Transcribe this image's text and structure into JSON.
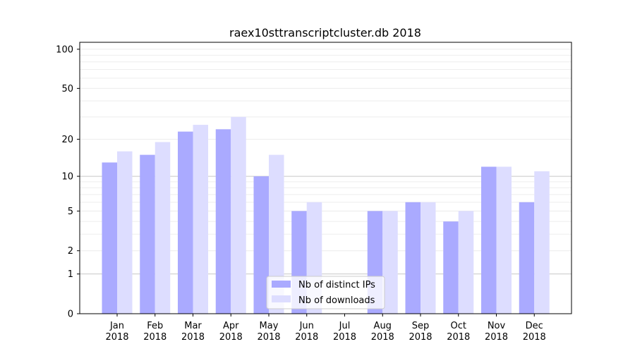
{
  "chart_data": {
    "type": "bar",
    "title": "raex10sttranscriptcluster.db 2018",
    "xlabel": "",
    "ylabel": "",
    "yscale": "log10(1+y)",
    "ylim": [
      0,
      113
    ],
    "yticks": [
      0,
      1,
      2,
      5,
      10,
      20,
      50,
      100
    ],
    "grid": true,
    "legend_position": "lower-center",
    "categories": [
      "Jan\n2018",
      "Feb\n2018",
      "Mar\n2018",
      "Apr\n2018",
      "May\n2018",
      "Jun\n2018",
      "Jul\n2018",
      "Aug\n2018",
      "Sep\n2018",
      "Oct\n2018",
      "Nov\n2018",
      "Dec\n2018"
    ],
    "series": [
      {
        "name": "Nb of distinct IPs",
        "color": "#aaaaff",
        "values": [
          13,
          15,
          23,
          24,
          10,
          5,
          0,
          5,
          6,
          4,
          12,
          6
        ]
      },
      {
        "name": "Nb of downloads",
        "color": "#ddddff",
        "values": [
          16,
          19,
          26,
          30,
          15,
          6,
          0,
          5,
          6,
          5,
          12,
          11
        ]
      }
    ]
  }
}
